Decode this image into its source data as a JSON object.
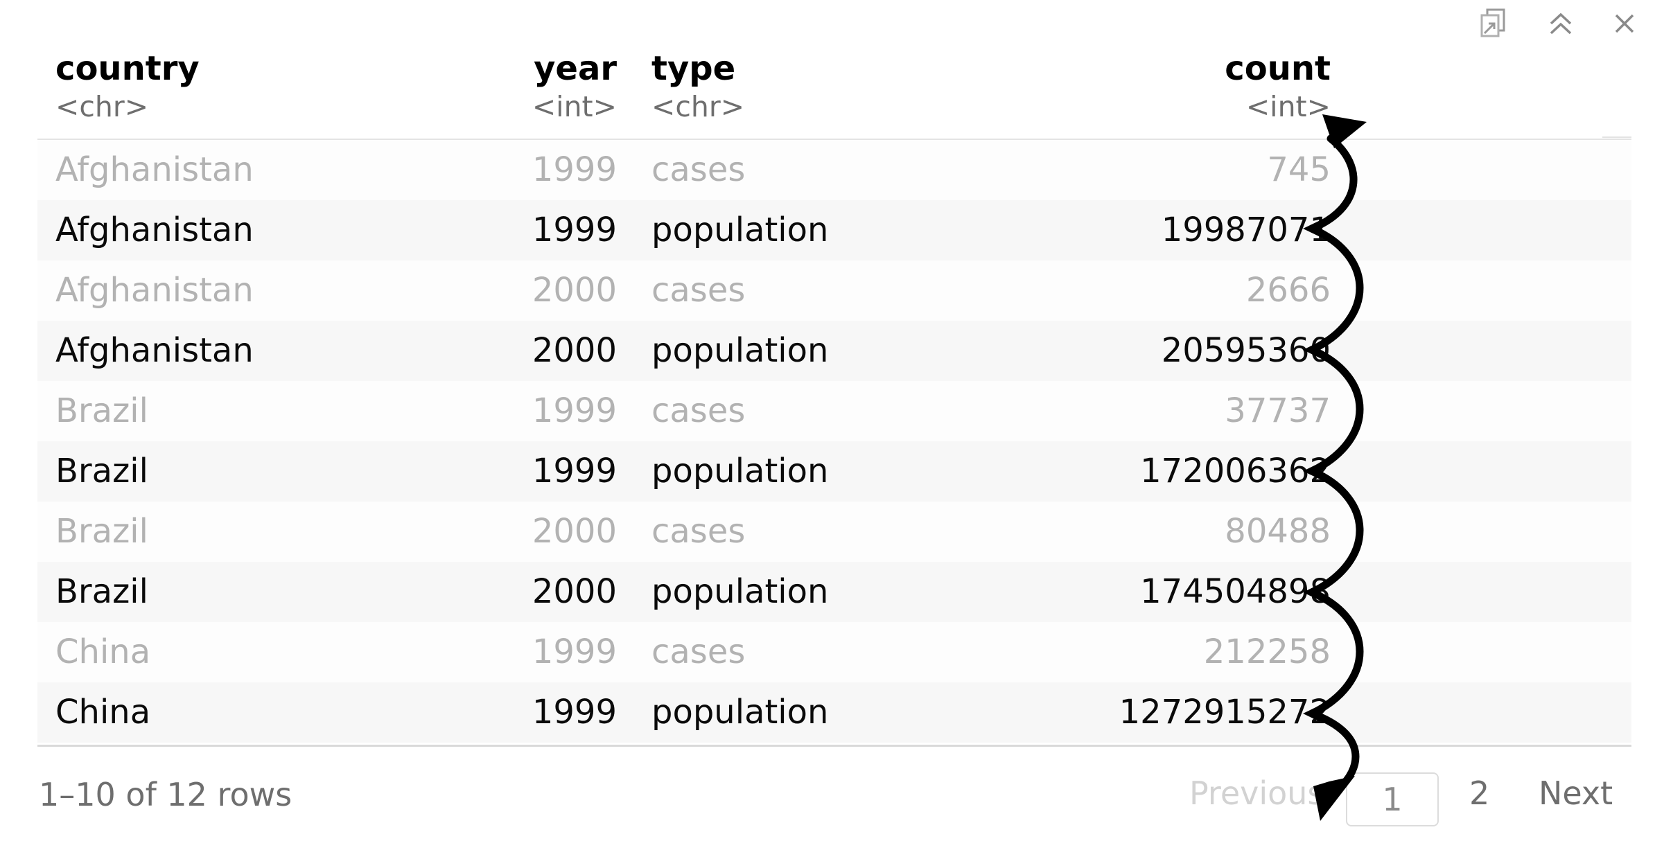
{
  "toolbar": {
    "icons": [
      "external-window-icon",
      "collapse-up-icon",
      "close-icon"
    ]
  },
  "columns": [
    {
      "name": "country",
      "type": "<chr>"
    },
    {
      "name": "year",
      "type": "<int>"
    },
    {
      "name": "type",
      "type": "<chr>"
    },
    {
      "name": "count",
      "type": "<int>"
    }
  ],
  "rows": [
    {
      "country": "Afghanistan",
      "year": "1999",
      "type": "cases",
      "count": "745"
    },
    {
      "country": "Afghanistan",
      "year": "1999",
      "type": "population",
      "count": "19987071"
    },
    {
      "country": "Afghanistan",
      "year": "2000",
      "type": "cases",
      "count": "2666"
    },
    {
      "country": "Afghanistan",
      "year": "2000",
      "type": "population",
      "count": "20595360"
    },
    {
      "country": "Brazil",
      "year": "1999",
      "type": "cases",
      "count": "37737"
    },
    {
      "country": "Brazil",
      "year": "1999",
      "type": "population",
      "count": "172006362"
    },
    {
      "country": "Brazil",
      "year": "2000",
      "type": "cases",
      "count": "80488"
    },
    {
      "country": "Brazil",
      "year": "2000",
      "type": "population",
      "count": "174504898"
    },
    {
      "country": "China",
      "year": "1999",
      "type": "cases",
      "count": "212258"
    },
    {
      "country": "China",
      "year": "1999",
      "type": "population",
      "count": "1272915272"
    }
  ],
  "footer": {
    "row_info": "1–10 of 12 rows",
    "previous_label": "Previous",
    "page_1": "1",
    "page_2": "2",
    "next_label": "Next"
  },
  "colors": {
    "muted_row_text": "#b2b2b2",
    "strong_row_text": "#0a0a0a",
    "annotation_arrow": "#000000"
  }
}
